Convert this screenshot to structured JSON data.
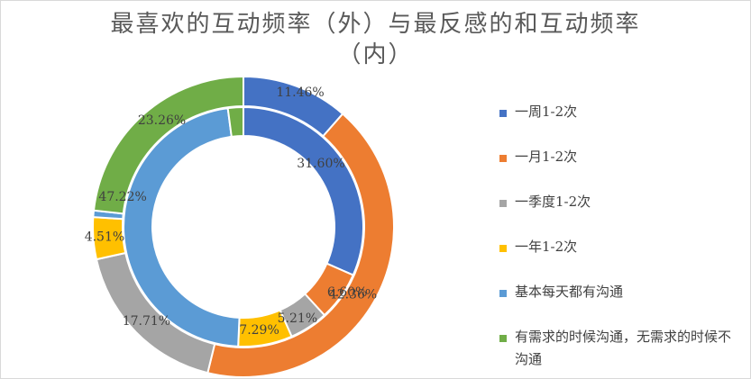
{
  "chart_data": {
    "type": "donut",
    "title_lines": [
      "最喜欢的互动频率（外）与最反感的和互动频率",
      "（内）"
    ],
    "categories": [
      "一周1-2次",
      "一月1-2次",
      "一季度1-2次",
      "一年1-2次",
      "基本每天都有沟通",
      "有需求的时候沟通，无需求的时候不沟通"
    ],
    "colors": [
      "#4472c4",
      "#ed7d31",
      "#a5a5a5",
      "#ffc000",
      "#5b9bd5",
      "#70ad47"
    ],
    "series": [
      {
        "ring": "outer",
        "values": [
          11.46,
          42.36,
          17.71,
          4.51,
          0.7,
          23.26
        ],
        "labels": [
          "11.46%",
          "42.36%",
          "17.71%",
          "4.51%",
          "",
          "23.26%"
        ]
      },
      {
        "ring": "inner",
        "values": [
          31.6,
          6.6,
          5.21,
          7.29,
          47.22,
          2.08
        ],
        "labels": [
          "31.60%",
          "6.60%",
          "5.21%",
          "7.29%",
          "47.22%",
          ""
        ]
      }
    ],
    "legend": {
      "position": "right",
      "items": [
        "一周1-2次",
        "一月1-2次",
        "一季度1-2次",
        "一年1-2次",
        "基本每天都有沟通",
        "有需求的时候沟通，无需求的时候不沟通"
      ]
    }
  }
}
